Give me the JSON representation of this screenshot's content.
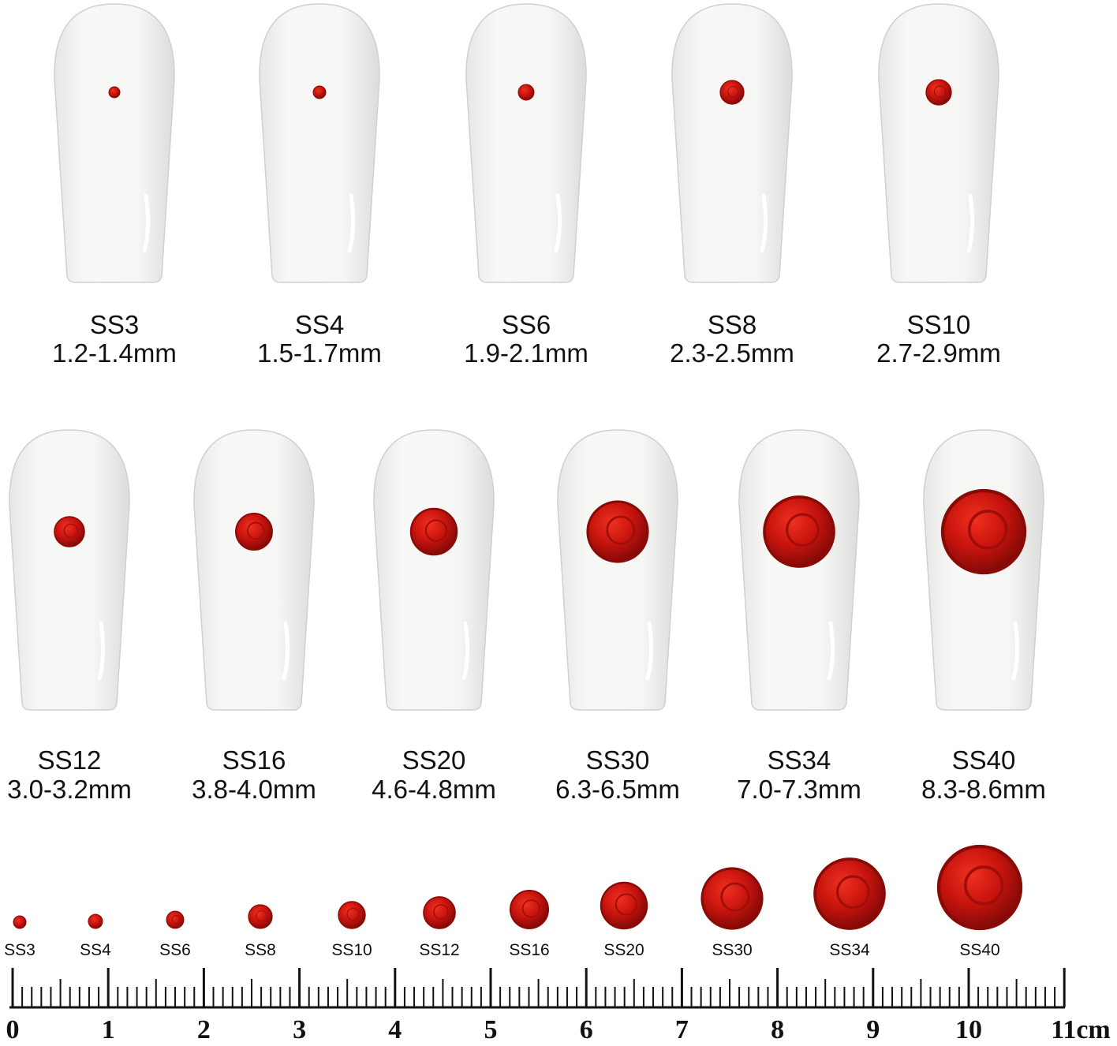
{
  "nails": [
    {
      "name": "SS3",
      "size": "1.2-1.4mm"
    },
    {
      "name": "SS4",
      "size": "1.5-1.7mm"
    },
    {
      "name": "SS6",
      "size": "1.9-2.1mm"
    },
    {
      "name": "SS8",
      "size": "2.3-2.5mm"
    },
    {
      "name": "SS10",
      "size": "2.7-2.9mm"
    },
    {
      "name": "SS12",
      "size": "3.0-3.2mm"
    },
    {
      "name": "SS16",
      "size": "3.8-4.0mm"
    },
    {
      "name": "SS20",
      "size": "4.6-4.8mm"
    },
    {
      "name": "SS30",
      "size": "6.3-6.5mm"
    },
    {
      "name": "SS34",
      "size": "7.0-7.3mm"
    },
    {
      "name": "SS40",
      "size": "8.3-8.6mm"
    }
  ],
  "gems": [
    "SS3",
    "SS4",
    "SS6",
    "SS8",
    "SS10",
    "SS12",
    "SS16",
    "SS20",
    "SS30",
    "SS34",
    "SS40"
  ],
  "ruler": [
    "0",
    "1",
    "2",
    "3",
    "4",
    "5",
    "6",
    "7",
    "8",
    "9",
    "10",
    "11cm"
  ]
}
